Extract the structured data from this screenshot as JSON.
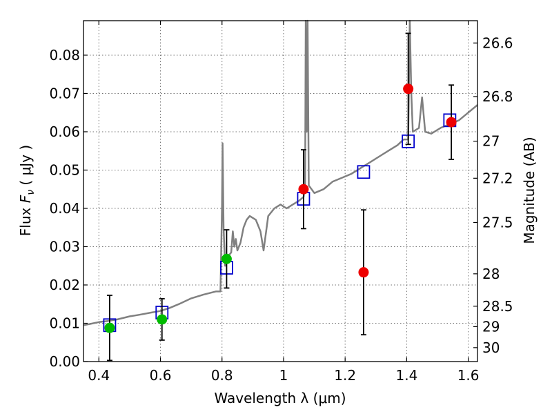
{
  "chart_data": {
    "type": "scatter",
    "xlabel": "Wavelength  λ (μm)",
    "ylabel": "Flux  F_ν  ( μJy )",
    "ylabel_parts": {
      "pre": "Flux  ",
      "sym": "F",
      "sub": "ν",
      "post": "  ( μJy )"
    },
    "y2label": "Magnitude (AB)",
    "xlim": [
      0.35,
      1.63
    ],
    "ylim": [
      0,
      0.089
    ],
    "grid": true,
    "x_ticks": [
      {
        "value": 0.4,
        "label": "0.4"
      },
      {
        "value": 0.6,
        "label": "0.6"
      },
      {
        "value": 0.8,
        "label": "0.8"
      },
      {
        "value": 1.0,
        "label": "1"
      },
      {
        "value": 1.2,
        "label": "1.2"
      },
      {
        "value": 1.4,
        "label": "1.4"
      },
      {
        "value": 1.6,
        "label": "1.6"
      }
    ],
    "y_ticks": [
      {
        "value": 0.0,
        "label": "0.00"
      },
      {
        "value": 0.01,
        "label": "0.01"
      },
      {
        "value": 0.02,
        "label": "0.02"
      },
      {
        "value": 0.03,
        "label": "0.03"
      },
      {
        "value": 0.04,
        "label": "0.04"
      },
      {
        "value": 0.05,
        "label": "0.05"
      },
      {
        "value": 0.06,
        "label": "0.06"
      },
      {
        "value": 0.07,
        "label": "0.07"
      },
      {
        "value": 0.08,
        "label": "0.08"
      }
    ],
    "mag_ticks": [
      {
        "value": 26.6,
        "label": "26.6"
      },
      {
        "value": 26.8,
        "label": "26.8"
      },
      {
        "value": 27.0,
        "label": "27"
      },
      {
        "value": 27.2,
        "label": "27.2"
      },
      {
        "value": 27.5,
        "label": "27.5"
      },
      {
        "value": 28.0,
        "label": "28"
      },
      {
        "value": 28.5,
        "label": "28.5"
      },
      {
        "value": 29.0,
        "label": "29"
      },
      {
        "value": 30.0,
        "label": "30"
      }
    ],
    "colors": {
      "spectrum": "#808080",
      "model": "#0000cc",
      "optical": "#00bb00",
      "nir": "#ee0000",
      "errorbar": "#000000"
    },
    "spectrum": [
      [
        0.35,
        0.0095
      ],
      [
        0.37,
        0.0098
      ],
      [
        0.4,
        0.0103
      ],
      [
        0.43,
        0.0106
      ],
      [
        0.46,
        0.011
      ],
      [
        0.5,
        0.0118
      ],
      [
        0.53,
        0.0122
      ],
      [
        0.57,
        0.0128
      ],
      [
        0.6,
        0.0132
      ],
      [
        0.63,
        0.014
      ],
      [
        0.66,
        0.015
      ],
      [
        0.7,
        0.0165
      ],
      [
        0.74,
        0.0175
      ],
      [
        0.78,
        0.0183
      ],
      [
        0.795,
        0.0183
      ],
      [
        0.8,
        0.04
      ],
      [
        0.802,
        0.057
      ],
      [
        0.805,
        0.035
      ],
      [
        0.81,
        0.025
      ],
      [
        0.82,
        0.0275
      ],
      [
        0.83,
        0.0285
      ],
      [
        0.835,
        0.034
      ],
      [
        0.84,
        0.03
      ],
      [
        0.845,
        0.032
      ],
      [
        0.85,
        0.029
      ],
      [
        0.86,
        0.031
      ],
      [
        0.87,
        0.035
      ],
      [
        0.88,
        0.037
      ],
      [
        0.89,
        0.038
      ],
      [
        0.91,
        0.037
      ],
      [
        0.925,
        0.034
      ],
      [
        0.935,
        0.029
      ],
      [
        0.95,
        0.038
      ],
      [
        0.97,
        0.04
      ],
      [
        0.99,
        0.041
      ],
      [
        1.01,
        0.04
      ],
      [
        1.03,
        0.041
      ],
      [
        1.05,
        0.042
      ],
      [
        1.065,
        0.043
      ],
      [
        1.07,
        0.046
      ],
      [
        1.072,
        0.089
      ],
      [
        1.075,
        0.06
      ],
      [
        1.078,
        0.089
      ],
      [
        1.082,
        0.046
      ],
      [
        1.1,
        0.044
      ],
      [
        1.13,
        0.045
      ],
      [
        1.16,
        0.047
      ],
      [
        1.19,
        0.048
      ],
      [
        1.22,
        0.049
      ],
      [
        1.25,
        0.0505
      ],
      [
        1.28,
        0.052
      ],
      [
        1.31,
        0.0535
      ],
      [
        1.34,
        0.055
      ],
      [
        1.37,
        0.0565
      ],
      [
        1.39,
        0.058
      ],
      [
        1.405,
        0.058
      ],
      [
        1.41,
        0.089
      ],
      [
        1.415,
        0.07
      ],
      [
        1.42,
        0.06
      ],
      [
        1.44,
        0.061
      ],
      [
        1.45,
        0.069
      ],
      [
        1.46,
        0.06
      ],
      [
        1.48,
        0.0595
      ],
      [
        1.51,
        0.061
      ],
      [
        1.54,
        0.062
      ],
      [
        1.57,
        0.063
      ],
      [
        1.6,
        0.065
      ],
      [
        1.63,
        0.067
      ]
    ],
    "model_points": [
      {
        "x": 0.435,
        "y": 0.0095
      },
      {
        "x": 0.605,
        "y": 0.0128
      },
      {
        "x": 0.815,
        "y": 0.0245
      },
      {
        "x": 1.065,
        "y": 0.0425
      },
      {
        "x": 1.26,
        "y": 0.0495
      },
      {
        "x": 1.405,
        "y": 0.0575
      },
      {
        "x": 1.54,
        "y": 0.063
      }
    ],
    "optical_points": [
      {
        "x": 0.435,
        "y": 0.0088,
        "err": 0.0085
      },
      {
        "x": 0.605,
        "y": 0.011,
        "err": 0.0054
      },
      {
        "x": 0.815,
        "y": 0.0268,
        "err": 0.0076
      }
    ],
    "nir_points": [
      {
        "x": 1.065,
        "y": 0.045,
        "err": 0.0103
      },
      {
        "x": 1.26,
        "y": 0.0233,
        "err": 0.0163
      },
      {
        "x": 1.405,
        "y": 0.0712,
        "err": 0.0145
      },
      {
        "x": 1.545,
        "y": 0.0625,
        "err": 0.0097
      }
    ]
  }
}
